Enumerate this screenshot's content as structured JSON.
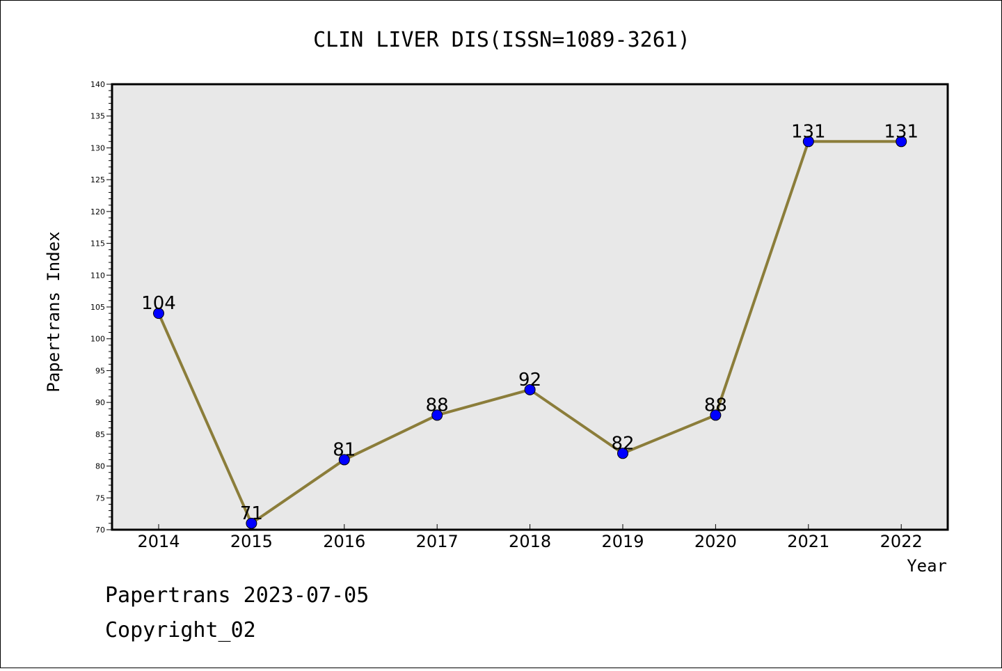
{
  "chart_data": {
    "type": "line",
    "title": "CLIN LIVER DIS(ISSN=1089-3261)",
    "xlabel": "Year",
    "ylabel": "Papertrans Index",
    "categories": [
      "2014",
      "2015",
      "2016",
      "2017",
      "2018",
      "2019",
      "2020",
      "2021",
      "2022"
    ],
    "series": [
      {
        "values": [
          104,
          71,
          81,
          88,
          92,
          82,
          88,
          131,
          131
        ]
      }
    ],
    "data_labels": [
      "104",
      "71",
      "81",
      "88",
      "92",
      "82",
      "88",
      "131",
      "131"
    ],
    "ylim": [
      70,
      140
    ],
    "y_major_step": 5,
    "y_minor_step": 1,
    "y_ticks": [
      "70",
      "75",
      "80",
      "85",
      "90",
      "95",
      "100",
      "105",
      "110",
      "115",
      "120",
      "125",
      "130",
      "135",
      "140"
    ],
    "grid": false,
    "legend": "none",
    "colors": {
      "line": "#8b7d3a",
      "marker": "#0000ff",
      "plot_background": "#e8e8e8"
    }
  },
  "footer": {
    "line1": "Papertrans 2023-07-05",
    "line2": "Copyright_02"
  }
}
